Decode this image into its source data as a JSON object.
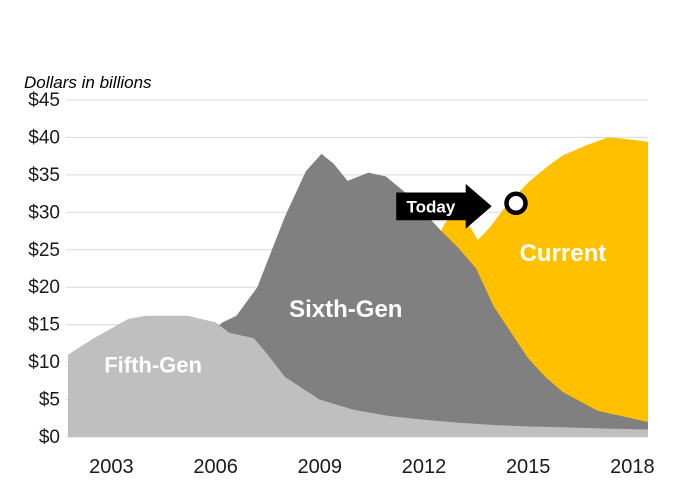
{
  "chart_data": {
    "type": "area",
    "title": "",
    "subtitle": "Dollars in billions",
    "xlim": [
      2001.75,
      2018.45
    ],
    "ylim": [
      0,
      45
    ],
    "grid": true,
    "gridline_color": "#D9D9D9",
    "axis_label_color": "#1A1A1A",
    "y_ticks": [
      {
        "value": 0,
        "label": "$0"
      },
      {
        "value": 5,
        "label": "$5"
      },
      {
        "value": 10,
        "label": "$10"
      },
      {
        "value": 15,
        "label": "$15"
      },
      {
        "value": 20,
        "label": "$20"
      },
      {
        "value": 25,
        "label": "$25"
      },
      {
        "value": 30,
        "label": "$30"
      },
      {
        "value": 35,
        "label": "$35"
      },
      {
        "value": 40,
        "label": "$40"
      },
      {
        "value": 45,
        "label": "$45"
      }
    ],
    "x_ticks": [
      {
        "value": 2003,
        "label": "2003"
      },
      {
        "value": 2006,
        "label": "2006"
      },
      {
        "value": 2009,
        "label": "2009"
      },
      {
        "value": 2012,
        "label": "2012"
      },
      {
        "value": 2015,
        "label": "2015"
      },
      {
        "value": 2018,
        "label": "2018"
      }
    ],
    "series": [
      {
        "name": "Current",
        "label": "Current",
        "color": "#FFC000",
        "label_color": "#FFFFFF",
        "label_size": 24,
        "label_anchor": [
          2016.0,
          23.5
        ],
        "points": [
          [
            2012.15,
            24.5
          ],
          [
            2012.6,
            28.5
          ],
          [
            2013.0,
            31.0
          ],
          [
            2013.15,
            29.5
          ],
          [
            2013.55,
            26.3
          ],
          [
            2013.9,
            28.0
          ],
          [
            2014.3,
            30.5
          ],
          [
            2014.7,
            32.5
          ],
          [
            2015.0,
            34.0
          ],
          [
            2015.6,
            36.3
          ],
          [
            2016.0,
            37.6
          ],
          [
            2016.7,
            39.0
          ],
          [
            2017.3,
            40.0
          ],
          [
            2017.8,
            39.8
          ],
          [
            2018.45,
            39.4
          ]
        ]
      },
      {
        "name": "Sixth-Gen",
        "label": "Sixth-Gen",
        "color": "#808080",
        "label_color": "#FFFFFF",
        "label_size": 24,
        "label_anchor": [
          2009.75,
          16.0
        ],
        "points": [
          [
            2005.7,
            13.5
          ],
          [
            2006.2,
            15.3
          ],
          [
            2006.6,
            16.2
          ],
          [
            2007.2,
            20.0
          ],
          [
            2008.0,
            29.5
          ],
          [
            2008.6,
            35.5
          ],
          [
            2009.05,
            37.8
          ],
          [
            2009.4,
            36.5
          ],
          [
            2009.8,
            34.2
          ],
          [
            2010.4,
            35.3
          ],
          [
            2010.9,
            34.8
          ],
          [
            2011.5,
            32.5
          ],
          [
            2012.0,
            30.0
          ],
          [
            2012.5,
            27.5
          ],
          [
            2013.0,
            25.2
          ],
          [
            2013.5,
            22.5
          ],
          [
            2014.0,
            17.5
          ],
          [
            2014.5,
            14.0
          ],
          [
            2015.0,
            10.5
          ],
          [
            2015.5,
            8.0
          ],
          [
            2016.0,
            6.0
          ],
          [
            2017.0,
            3.5
          ],
          [
            2018.45,
            2.0
          ]
        ]
      },
      {
        "name": "Fifth-Gen",
        "label": "Fifth-Gen",
        "color": "#BFBFBF",
        "label_color": "#FFFFFF",
        "label_size": 22,
        "label_anchor": [
          2004.2,
          8.6
        ],
        "points": [
          [
            2001.75,
            11.0
          ],
          [
            2002.5,
            13.2
          ],
          [
            2003.5,
            15.8
          ],
          [
            2004.0,
            16.2
          ],
          [
            2005.2,
            16.2
          ],
          [
            2006.0,
            15.3
          ],
          [
            2006.4,
            13.9
          ],
          [
            2007.1,
            13.2
          ],
          [
            2007.5,
            11.0
          ],
          [
            2008.0,
            8.0
          ],
          [
            2009.0,
            5.0
          ],
          [
            2010.0,
            3.6
          ],
          [
            2011.0,
            2.8
          ],
          [
            2012.0,
            2.3
          ],
          [
            2013.0,
            1.9
          ],
          [
            2014.0,
            1.6
          ],
          [
            2015.0,
            1.4
          ],
          [
            2016.0,
            1.3
          ],
          [
            2017.0,
            1.15
          ],
          [
            2018.45,
            1.0
          ]
        ]
      }
    ],
    "annotations": {
      "arrow": {
        "label": "Today",
        "x_start": 2011.2,
        "x_body_end": 2013.2,
        "x_tip": 2013.95,
        "y_center": 30.8,
        "body_half_height": 1.85,
        "head_half_height": 3.0,
        "color": "#000000",
        "label_color": "#FFFFFF"
      },
      "marker_circle": {
        "x": 2014.65,
        "y": 31.2,
        "radius_px": 9.5,
        "stroke": "#000000",
        "fill": "#FFFFFF"
      }
    }
  }
}
